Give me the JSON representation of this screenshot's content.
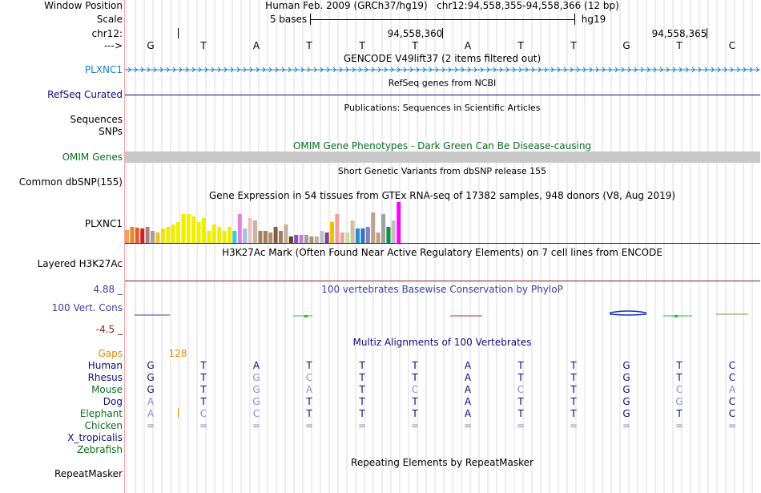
{
  "colors": {
    "blue_track": "#1480c8",
    "navy": "#0c0c78",
    "dark_green": "#0a6e1e",
    "orange": "#e08a00",
    "purple": "#6a4aa4",
    "maroon": "#8c1c1c",
    "gray_bar": "#c8c8c8",
    "phylop_blue": "#3c3ca0",
    "grid": "#dadae6"
  },
  "header": {
    "window_position_label": "Window Position",
    "window_position_value": "Human Feb. 2009 (GRCh37/hg19)   chr12:94,558,355-94,558,366 (12 bp)",
    "scale_label": "Scale",
    "scale_bases": "5 bases",
    "scale_assembly": "hg19",
    "chrom_label": "chr12:",
    "coord_1": "94,558,360",
    "coord_2": "94,558,365",
    "strand_label": "--->"
  },
  "dna_sequence": [
    "G",
    "T",
    "A",
    "T",
    "T",
    "T",
    "A",
    "T",
    "T",
    "G",
    "T",
    "C"
  ],
  "tracks": {
    "gencode_title": "GENCODE V49lift37 (2 items filtered out)",
    "gencode_label": "PLXNC1",
    "refseq_title": "RefSeq genes from NCBI",
    "refseq_label": "RefSeq Curated",
    "publications_title": "Publications: Sequences in Scientific Articles",
    "publications_label": "Sequences",
    "snps_label": "SNPs",
    "omim_title": "OMIM Gene Phenotypes - Dark Green Can Be Disease-causing",
    "omim_label": "OMIM Genes",
    "dbsnp_title": "Short Genetic Variants from dbSNP release 155",
    "dbsnp_label": "Common dbSNP(155)",
    "gtex_title": "Gene Expression in 54 tissues from GTEx RNA-seq of 17382 samples, 948 donors (V8, Aug 2019)",
    "gtex_label": "PLXNC1",
    "h3k27ac_title": "H3K27Ac Mark (Often Found Near Active Regulatory Elements) on 7 cell lines from ENCODE",
    "h3k27ac_label": "Layered H3K27Ac",
    "phylop_title": "100 vertebrates Basewise Conservation by PhyloP",
    "phylop_max": "4.88 _",
    "phylop_label": "100 Vert. Cons",
    "phylop_min": "-4.5 _",
    "multiz_title": "Multiz Alignments of 100 Vertebrates",
    "gaps_label": "Gaps",
    "gaps_value": "128",
    "repeat_title": "Repeating Elements by RepeatMasker",
    "repeat_label": "RepeatMasker"
  },
  "gtex_bars": [
    {
      "value": 0.32,
      "color": "#f0a050"
    },
    {
      "value": 0.4,
      "color": "#f08030"
    },
    {
      "value": 0.37,
      "color": "#e06020"
    },
    {
      "value": 0.35,
      "color": "#d02030"
    },
    {
      "value": 0.4,
      "color": "#b08070"
    },
    {
      "value": 0.3,
      "color": "#a0a0a0"
    },
    {
      "value": 0.25,
      "color": "#f0c030"
    },
    {
      "value": 0.35,
      "color": "#eedd20"
    },
    {
      "value": 0.4,
      "color": "#eeee00"
    },
    {
      "value": 0.45,
      "color": "#eeee00"
    },
    {
      "value": 0.5,
      "color": "#eeee00"
    },
    {
      "value": 0.7,
      "color": "#eeee00"
    },
    {
      "value": 0.7,
      "color": "#eeee00"
    },
    {
      "value": 0.65,
      "color": "#eeee00"
    },
    {
      "value": 0.5,
      "color": "#eeee00"
    },
    {
      "value": 0.6,
      "color": "#eeee00"
    },
    {
      "value": 0.3,
      "color": "#eeee00"
    },
    {
      "value": 0.45,
      "color": "#eeee00"
    },
    {
      "value": 0.4,
      "color": "#eeee00"
    },
    {
      "value": 0.3,
      "color": "#eeee00"
    },
    {
      "value": 0.4,
      "color": "#eeee00"
    },
    {
      "value": 0.3,
      "color": "#30d0d0"
    },
    {
      "value": 0.7,
      "color": "#e080e0"
    },
    {
      "value": 0.35,
      "color": "#a0c0e0"
    },
    {
      "value": 0.6,
      "color": "#f0c0c0"
    },
    {
      "value": 0.55,
      "color": "#d0b0a0"
    },
    {
      "value": 0.3,
      "color": "#a08060"
    },
    {
      "value": 0.3,
      "color": "#a08060"
    },
    {
      "value": 0.25,
      "color": "#b09070"
    },
    {
      "value": 0.4,
      "color": "#806040"
    },
    {
      "value": 0.3,
      "color": "#a08060"
    },
    {
      "value": 0.45,
      "color": "#c0b0a0"
    },
    {
      "value": 0.15,
      "color": "#604020"
    },
    {
      "value": 0.2,
      "color": "#9050c0"
    },
    {
      "value": 0.2,
      "color": "#c080d0"
    },
    {
      "value": 0.2,
      "color": "#a0a0a0"
    },
    {
      "value": 0.15,
      "color": "#b09070"
    },
    {
      "value": 0.15,
      "color": "#c0b0a0"
    },
    {
      "value": 0.3,
      "color": "#c0c0c0"
    },
    {
      "value": 0.25,
      "color": "#8040a0"
    },
    {
      "value": 0.5,
      "color": "#f0c000"
    },
    {
      "value": 0.7,
      "color": "#f0a0a0"
    },
    {
      "value": 0.25,
      "color": "#f0a0a0"
    },
    {
      "value": 0.25,
      "color": "#c0e0a0"
    },
    {
      "value": 0.55,
      "color": "#d0c0a0"
    },
    {
      "value": 0.35,
      "color": "#2090d0"
    },
    {
      "value": 0.35,
      "color": "#3070c0"
    },
    {
      "value": 0.4,
      "color": "#8080c0"
    },
    {
      "value": 0.75,
      "color": "#c0a090"
    },
    {
      "value": 0.25,
      "color": "#c0a080"
    },
    {
      "value": 0.7,
      "color": "#a0a0a0"
    },
    {
      "value": 0.4,
      "color": "#109040"
    },
    {
      "value": 0.55,
      "color": "#c0c0c0"
    },
    {
      "value": 1.0,
      "color": "#ff00ff"
    }
  ],
  "alignment": {
    "species": [
      {
        "name": "Human",
        "color": "#0c0c78",
        "bases": [
          "G",
          "T",
          "A",
          "T",
          "T",
          "T",
          "A",
          "T",
          "T",
          "G",
          "T",
          "C"
        ],
        "base_color": "#0c0c78"
      },
      {
        "name": "Rhesus",
        "color": "#0c0c78",
        "bases": [
          "G",
          "T",
          "G",
          "C",
          "T",
          "T",
          "A",
          "T",
          "T",
          "G",
          "T",
          "C"
        ],
        "base_color": "#0c0c78"
      },
      {
        "name": "Mouse",
        "color": "#0a6e1e",
        "bases": [
          "G",
          "T",
          "G",
          "A",
          "T",
          "C",
          "A",
          "C",
          "T",
          "G",
          "C",
          "A"
        ],
        "base_color": "#0c0c78"
      },
      {
        "name": "Dog",
        "color": "#0c0c78",
        "bases": [
          "A",
          "T",
          "G",
          "T",
          "T",
          "T",
          "A",
          "T",
          "T",
          "G",
          "G",
          "C"
        ],
        "base_color": "#0c0c78"
      },
      {
        "name": "Elephant",
        "color": "#0a6e1e",
        "bases": [
          "A",
          "C",
          "C",
          "T",
          "T",
          "T",
          "A",
          "T",
          "T",
          "G",
          "T",
          "C"
        ],
        "base_color": "#0c0c78"
      },
      {
        "name": "Chicken",
        "color": "#0a6e1e",
        "bases": [
          "=",
          "=",
          "=",
          "=",
          "=",
          "=",
          "=",
          "=",
          "=",
          "=",
          "=",
          "="
        ],
        "base_color": "#8888bb"
      },
      {
        "name": "X_tropicalis",
        "color": "#0c0c78",
        "bases": [],
        "base_color": "#0c0c78"
      },
      {
        "name": "Zebrafish",
        "color": "#0a6e1e",
        "bases": [],
        "base_color": "#0c0c78"
      }
    ]
  }
}
